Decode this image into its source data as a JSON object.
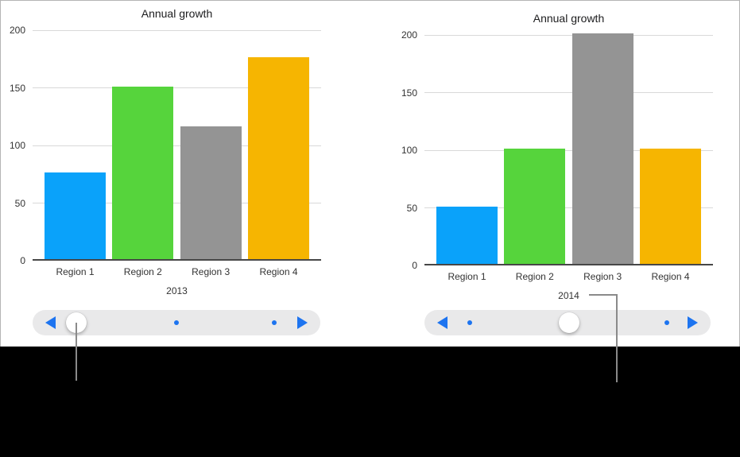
{
  "canvas": {
    "background": "#000000",
    "panel_background": "#ffffff",
    "panel_border": "#b4b4b4"
  },
  "chart_data": [
    {
      "type": "bar",
      "title": "Annual growth",
      "categories": [
        "Region 1",
        "Region 2",
        "Region 3",
        "Region 4"
      ],
      "values": [
        75,
        150,
        115,
        175
      ],
      "bar_colors": [
        "#0aa2fa",
        "#56d43c",
        "#949494",
        "#f6b501"
      ],
      "xlabel": "2013",
      "ylabel": "",
      "ylim": [
        0,
        200
      ],
      "yticks": [
        0,
        50,
        100,
        150,
        200
      ],
      "grid": true,
      "legend": false,
      "gridline_color": "#d9d9d9",
      "axis_color": "#474747"
    },
    {
      "type": "bar",
      "title": "Annual growth",
      "categories": [
        "Region 1",
        "Region 2",
        "Region 3",
        "Region 4"
      ],
      "values": [
        50,
        100,
        200,
        100
      ],
      "bar_colors": [
        "#0aa2fa",
        "#56d43c",
        "#949494",
        "#f6b501"
      ],
      "xlabel": "2014",
      "ylabel": "",
      "ylim": [
        0,
        200
      ],
      "yticks": [
        0,
        50,
        100,
        150,
        200
      ],
      "grid": true,
      "legend": false,
      "gridline_color": "#d9d9d9",
      "axis_color": "#474747"
    }
  ],
  "scrubbers": [
    {
      "label": "2013 chart pager",
      "left_arrow_icon": "triangle-left",
      "right_arrow_icon": "triangle-right",
      "thumb_pct": 15.2,
      "dots_pct": [
        50.0,
        84.0
      ],
      "track_color": "#e9e9ea",
      "accent_color": "#1d74f0"
    },
    {
      "label": "2014 chart pager",
      "left_arrow_icon": "triangle-left",
      "right_arrow_icon": "triangle-right",
      "thumb_pct": 50.6,
      "dots_pct": [
        15.8,
        84.7
      ],
      "track_color": "#e9e9ea",
      "accent_color": "#1d74f0"
    }
  ],
  "callouts": {
    "color": "#8a8a8a"
  }
}
